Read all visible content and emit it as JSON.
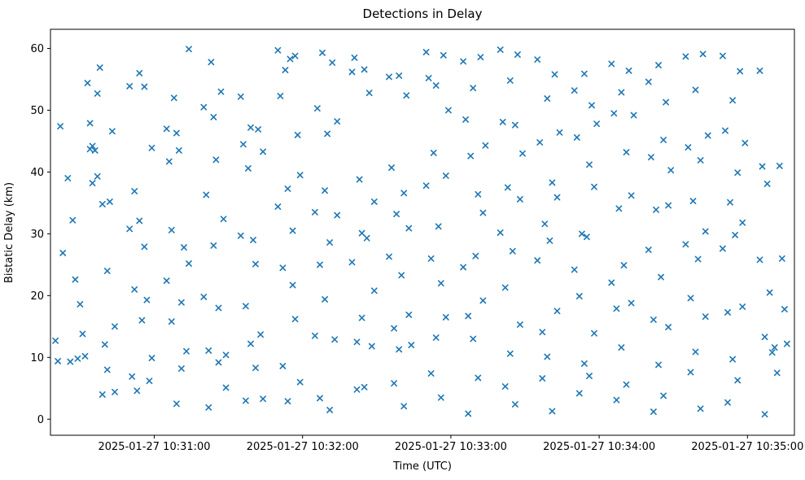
{
  "chart_data": {
    "type": "scatter",
    "title": "Detections in Delay",
    "xlabel": "Time (UTC)",
    "ylabel": "Bistatic Delay (km)",
    "marker": "x",
    "marker_color": "#1f77b4",
    "grid": false,
    "legend": "none",
    "x_range_seconds": [
      18,
      319
    ],
    "x_base": "2025-01-27 10:30:00",
    "ylim": [
      -2.6,
      63.1
    ],
    "x_ticks": [
      {
        "seconds": 60,
        "label": "2025-01-27 10:31:00"
      },
      {
        "seconds": 120,
        "label": "2025-01-27 10:32:00"
      },
      {
        "seconds": 180,
        "label": "2025-01-27 10:33:00"
      },
      {
        "seconds": 240,
        "label": "2025-01-27 10:34:00"
      },
      {
        "seconds": 300,
        "label": "2025-01-27 10:35:00"
      }
    ],
    "y_ticks": [
      {
        "value": 0,
        "label": "0"
      },
      {
        "value": 10,
        "label": "10"
      },
      {
        "value": 20,
        "label": "20"
      },
      {
        "value": 30,
        "label": "30"
      },
      {
        "value": 40,
        "label": "40"
      },
      {
        "value": 50,
        "label": "50"
      },
      {
        "value": 60,
        "label": "60"
      }
    ],
    "points_units": "seconds after 2025-01-27 10:30:00, bistatic delay km",
    "points": [
      [
        20,
        12.7
      ],
      [
        21,
        9.4
      ],
      [
        22,
        47.4
      ],
      [
        23,
        26.9
      ],
      [
        25,
        39.0
      ],
      [
        26,
        9.3
      ],
      [
        27,
        32.2
      ],
      [
        28,
        22.6
      ],
      [
        29,
        9.8
      ],
      [
        30,
        18.6
      ],
      [
        31,
        13.8
      ],
      [
        32,
        10.2
      ],
      [
        33,
        54.4
      ],
      [
        34,
        47.9
      ],
      [
        34,
        43.7
      ],
      [
        35,
        38.2
      ],
      [
        35,
        44.2
      ],
      [
        36,
        43.5
      ],
      [
        37,
        39.3
      ],
      [
        37,
        52.7
      ],
      [
        38,
        56.9
      ],
      [
        39,
        4.0
      ],
      [
        39,
        34.8
      ],
      [
        40,
        12.1
      ],
      [
        41,
        8.0
      ],
      [
        41,
        24.0
      ],
      [
        42,
        35.2
      ],
      [
        43,
        46.6
      ],
      [
        44,
        4.4
      ],
      [
        44,
        15.0
      ],
      [
        50,
        53.9
      ],
      [
        50,
        30.8
      ],
      [
        51,
        6.9
      ],
      [
        52,
        36.9
      ],
      [
        52,
        21.0
      ],
      [
        53,
        4.6
      ],
      [
        54,
        56.0
      ],
      [
        54,
        32.1
      ],
      [
        55,
        16.0
      ],
      [
        56,
        53.8
      ],
      [
        56,
        27.9
      ],
      [
        57,
        19.3
      ],
      [
        58,
        6.2
      ],
      [
        59,
        9.9
      ],
      [
        59,
        43.9
      ],
      [
        65,
        47.0
      ],
      [
        65,
        22.4
      ],
      [
        66,
        41.7
      ],
      [
        67,
        30.6
      ],
      [
        67,
        15.8
      ],
      [
        68,
        52.0
      ],
      [
        69,
        46.3
      ],
      [
        69,
        2.5
      ],
      [
        70,
        43.5
      ],
      [
        71,
        18.9
      ],
      [
        71,
        8.2
      ],
      [
        72,
        27.8
      ],
      [
        73,
        11.0
      ],
      [
        74,
        59.9
      ],
      [
        74,
        25.2
      ],
      [
        80,
        50.5
      ],
      [
        80,
        19.8
      ],
      [
        81,
        36.3
      ],
      [
        82,
        11.1
      ],
      [
        82,
        1.9
      ],
      [
        83,
        57.8
      ],
      [
        84,
        48.9
      ],
      [
        84,
        28.1
      ],
      [
        85,
        42.0
      ],
      [
        86,
        9.2
      ],
      [
        86,
        18.0
      ],
      [
        87,
        53.0
      ],
      [
        88,
        32.4
      ],
      [
        89,
        5.1
      ],
      [
        89,
        10.4
      ],
      [
        95,
        52.2
      ],
      [
        95,
        29.7
      ],
      [
        96,
        44.5
      ],
      [
        97,
        18.3
      ],
      [
        97,
        3.0
      ],
      [
        98,
        40.6
      ],
      [
        99,
        47.2
      ],
      [
        99,
        12.2
      ],
      [
        100,
        29.0
      ],
      [
        101,
        8.3
      ],
      [
        101,
        25.1
      ],
      [
        102,
        46.9
      ],
      [
        103,
        13.7
      ],
      [
        104,
        3.3
      ],
      [
        104,
        43.3
      ],
      [
        110,
        59.7
      ],
      [
        110,
        34.4
      ],
      [
        111,
        52.3
      ],
      [
        112,
        24.5
      ],
      [
        112,
        8.6
      ],
      [
        113,
        56.5
      ],
      [
        114,
        37.3
      ],
      [
        114,
        2.9
      ],
      [
        115,
        58.3
      ],
      [
        116,
        30.5
      ],
      [
        116,
        21.7
      ],
      [
        117,
        58.8
      ],
      [
        117,
        16.2
      ],
      [
        118,
        46.0
      ],
      [
        119,
        6.0
      ],
      [
        119,
        39.5
      ],
      [
        125,
        33.5
      ],
      [
        125,
        13.5
      ],
      [
        126,
        50.3
      ],
      [
        127,
        25.0
      ],
      [
        127,
        3.4
      ],
      [
        128,
        59.3
      ],
      [
        129,
        37.0
      ],
      [
        129,
        19.4
      ],
      [
        130,
        46.2
      ],
      [
        131,
        1.5
      ],
      [
        131,
        28.6
      ],
      [
        132,
        57.7
      ],
      [
        133,
        12.9
      ],
      [
        134,
        33.0
      ],
      [
        134,
        48.2
      ],
      [
        140,
        56.2
      ],
      [
        140,
        25.4
      ],
      [
        141,
        58.5
      ],
      [
        142,
        12.5
      ],
      [
        142,
        4.8
      ],
      [
        143,
        38.8
      ],
      [
        144,
        30.1
      ],
      [
        144,
        16.4
      ],
      [
        145,
        56.6
      ],
      [
        145,
        5.2
      ],
      [
        146,
        29.3
      ],
      [
        147,
        52.8
      ],
      [
        148,
        11.8
      ],
      [
        149,
        35.2
      ],
      [
        149,
        20.8
      ],
      [
        155,
        55.4
      ],
      [
        155,
        26.3
      ],
      [
        156,
        40.7
      ],
      [
        157,
        14.7
      ],
      [
        157,
        5.8
      ],
      [
        158,
        33.2
      ],
      [
        159,
        55.6
      ],
      [
        159,
        11.3
      ],
      [
        160,
        23.3
      ],
      [
        161,
        2.1
      ],
      [
        161,
        36.6
      ],
      [
        162,
        52.4
      ],
      [
        163,
        16.9
      ],
      [
        163,
        30.9
      ],
      [
        164,
        12.0
      ],
      [
        170,
        59.4
      ],
      [
        170,
        37.8
      ],
      [
        171,
        55.2
      ],
      [
        172,
        26.0
      ],
      [
        172,
        7.4
      ],
      [
        173,
        43.1
      ],
      [
        174,
        54.0
      ],
      [
        174,
        13.2
      ],
      [
        175,
        31.2
      ],
      [
        176,
        3.5
      ],
      [
        176,
        22.0
      ],
      [
        177,
        58.9
      ],
      [
        178,
        16.5
      ],
      [
        178,
        39.4
      ],
      [
        179,
        50.0
      ],
      [
        185,
        57.9
      ],
      [
        185,
        24.6
      ],
      [
        186,
        48.5
      ],
      [
        187,
        16.7
      ],
      [
        187,
        0.9
      ],
      [
        188,
        42.6
      ],
      [
        189,
        53.6
      ],
      [
        189,
        13.0
      ],
      [
        190,
        26.4
      ],
      [
        191,
        6.7
      ],
      [
        191,
        36.4
      ],
      [
        192,
        58.6
      ],
      [
        193,
        19.2
      ],
      [
        193,
        33.4
      ],
      [
        194,
        44.3
      ],
      [
        200,
        59.8
      ],
      [
        200,
        30.2
      ],
      [
        201,
        48.1
      ],
      [
        202,
        21.3
      ],
      [
        202,
        5.3
      ],
      [
        203,
        37.5
      ],
      [
        204,
        54.8
      ],
      [
        204,
        10.6
      ],
      [
        205,
        27.2
      ],
      [
        206,
        2.4
      ],
      [
        206,
        47.6
      ],
      [
        207,
        59.0
      ],
      [
        208,
        15.3
      ],
      [
        208,
        35.6
      ],
      [
        209,
        43.0
      ],
      [
        215,
        58.2
      ],
      [
        215,
        25.7
      ],
      [
        216,
        44.8
      ],
      [
        217,
        14.1
      ],
      [
        217,
        6.6
      ],
      [
        218,
        31.6
      ],
      [
        219,
        51.9
      ],
      [
        219,
        10.1
      ],
      [
        220,
        28.9
      ],
      [
        221,
        1.3
      ],
      [
        221,
        38.3
      ],
      [
        222,
        55.8
      ],
      [
        223,
        17.5
      ],
      [
        223,
        35.9
      ],
      [
        224,
        46.4
      ],
      [
        230,
        53.2
      ],
      [
        230,
        24.2
      ],
      [
        231,
        45.6
      ],
      [
        232,
        19.9
      ],
      [
        232,
        4.2
      ],
      [
        233,
        30.0
      ],
      [
        234,
        55.9
      ],
      [
        234,
        9.0
      ],
      [
        235,
        29.5
      ],
      [
        236,
        7.0
      ],
      [
        236,
        41.2
      ],
      [
        237,
        50.8
      ],
      [
        238,
        13.9
      ],
      [
        238,
        37.6
      ],
      [
        239,
        47.8
      ],
      [
        245,
        57.5
      ],
      [
        245,
        22.1
      ],
      [
        246,
        49.5
      ],
      [
        247,
        17.9
      ],
      [
        247,
        3.1
      ],
      [
        248,
        34.1
      ],
      [
        249,
        52.9
      ],
      [
        249,
        11.6
      ],
      [
        250,
        24.9
      ],
      [
        251,
        5.6
      ],
      [
        251,
        43.2
      ],
      [
        252,
        56.4
      ],
      [
        253,
        18.8
      ],
      [
        253,
        36.2
      ],
      [
        254,
        49.2
      ],
      [
        260,
        54.6
      ],
      [
        260,
        27.4
      ],
      [
        261,
        42.4
      ],
      [
        262,
        16.1
      ],
      [
        262,
        1.2
      ],
      [
        263,
        33.9
      ],
      [
        264,
        57.3
      ],
      [
        264,
        8.8
      ],
      [
        265,
        23.0
      ],
      [
        266,
        3.8
      ],
      [
        266,
        45.2
      ],
      [
        267,
        51.3
      ],
      [
        268,
        14.9
      ],
      [
        268,
        34.6
      ],
      [
        269,
        40.3
      ],
      [
        275,
        58.7
      ],
      [
        275,
        28.3
      ],
      [
        276,
        44.0
      ],
      [
        277,
        19.6
      ],
      [
        277,
        7.6
      ],
      [
        278,
        35.3
      ],
      [
        279,
        53.3
      ],
      [
        279,
        10.9
      ],
      [
        280,
        25.9
      ],
      [
        281,
        1.7
      ],
      [
        281,
        41.9
      ],
      [
        282,
        59.1
      ],
      [
        283,
        16.6
      ],
      [
        283,
        30.4
      ],
      [
        284,
        45.9
      ],
      [
        290,
        58.8
      ],
      [
        290,
        27.6
      ],
      [
        291,
        46.7
      ],
      [
        292,
        17.3
      ],
      [
        292,
        2.7
      ],
      [
        293,
        35.1
      ],
      [
        294,
        51.6
      ],
      [
        294,
        9.7
      ],
      [
        295,
        29.8
      ],
      [
        296,
        6.3
      ],
      [
        296,
        39.9
      ],
      [
        297,
        56.3
      ],
      [
        298,
        18.2
      ],
      [
        298,
        31.8
      ],
      [
        299,
        44.7
      ],
      [
        305,
        56.4
      ],
      [
        305,
        25.8
      ],
      [
        306,
        40.9
      ],
      [
        307,
        13.3
      ],
      [
        307,
        0.8
      ],
      [
        308,
        38.1
      ],
      [
        309,
        20.5
      ],
      [
        310,
        10.8
      ],
      [
        311,
        11.6
      ],
      [
        312,
        7.5
      ],
      [
        313,
        41.0
      ],
      [
        314,
        26.0
      ],
      [
        315,
        17.8
      ],
      [
        316,
        12.2
      ]
    ]
  }
}
